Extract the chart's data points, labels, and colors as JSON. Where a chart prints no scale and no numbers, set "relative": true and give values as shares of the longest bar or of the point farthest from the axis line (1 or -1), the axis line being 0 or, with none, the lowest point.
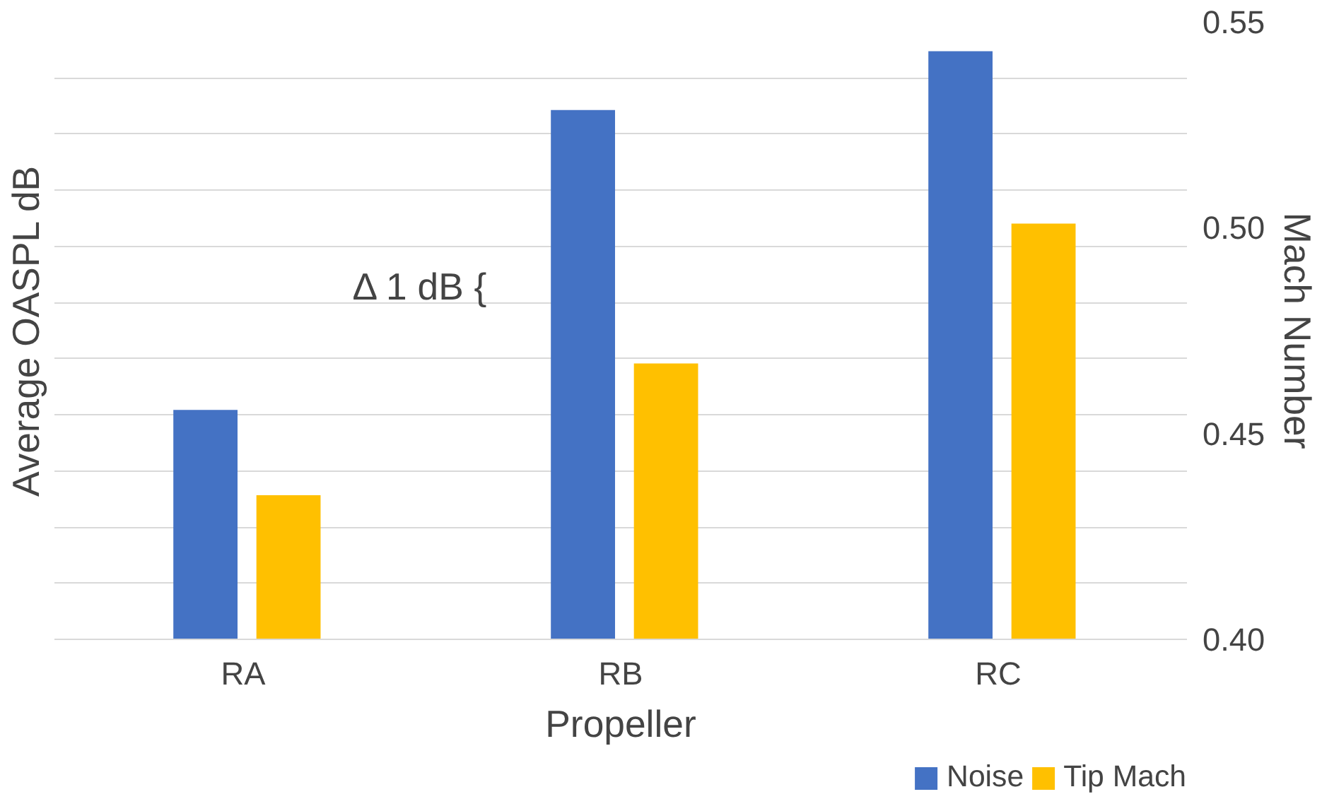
{
  "chart_data": {
    "type": "bar",
    "categories": [
      "RA",
      "RB",
      "RC"
    ],
    "xlabel": "Propeller",
    "ylabel": "Average OASPL dB",
    "y2label": "Mach Number",
    "relative": true,
    "y2lim": [
      0.4,
      0.55
    ],
    "y2ticks": [
      {
        "value": 0.4,
        "label": "0.40"
      },
      {
        "value": 0.45,
        "label": "0.45"
      },
      {
        "value": 0.5,
        "label": "0.50"
      },
      {
        "value": 0.55,
        "label": "0.55"
      }
    ],
    "grid": "y",
    "legend": "bottom",
    "annotations": [
      "Δ 1 dB {"
    ],
    "series": [
      {
        "name": "Noise",
        "color": "#4472c4",
        "values": [
          0.39,
          0.9,
          1.0
        ]
      },
      {
        "name": "Tip Mach",
        "color": "#ffc000",
        "axis": "y2",
        "values": [
          0.435,
          0.467,
          0.501
        ]
      }
    ]
  }
}
